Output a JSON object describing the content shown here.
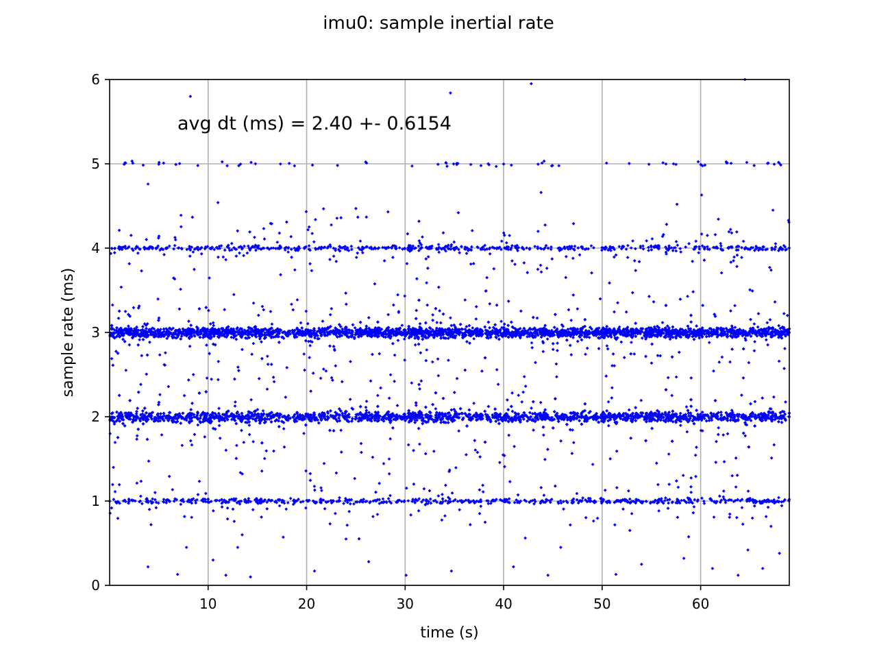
{
  "chart_data": {
    "type": "scatter",
    "title": "imu0: sample inertial rate",
    "xlabel": "time (s)",
    "ylabel": "sample rate (ms)",
    "xlim": [
      0,
      69
    ],
    "ylim": [
      0,
      6
    ],
    "xticks": [
      10,
      20,
      30,
      40,
      50,
      60
    ],
    "yticks": [
      0,
      1,
      2,
      3,
      4,
      5,
      6
    ],
    "grid": true,
    "color": "#0000ff",
    "annotation": "avg dt (ms) = 2.40 +- 0.6154",
    "series": [
      {
        "bands": [
          {
            "center": 3.0,
            "spread": 0.06,
            "density": "dense"
          },
          {
            "center": 2.0,
            "spread": 0.06,
            "density": "dense"
          },
          {
            "center": 4.0,
            "spread": 0.03,
            "density": "sparse"
          },
          {
            "center": 1.0,
            "spread": 0.03,
            "density": "sparse"
          },
          {
            "center": 5.0,
            "spread": 0.03,
            "density": "very sparse"
          }
        ],
        "outliers": [
          {
            "x": 8.2,
            "y": 5.8
          },
          {
            "x": 34.6,
            "y": 5.84
          },
          {
            "x": 42.8,
            "y": 5.95
          },
          {
            "x": 64.5,
            "y": 6.0
          },
          {
            "x": 3.9,
            "y": 4.76
          },
          {
            "x": 11.0,
            "y": 4.54
          },
          {
            "x": 25.0,
            "y": 4.47
          },
          {
            "x": 43.8,
            "y": 4.66
          },
          {
            "x": 57.6,
            "y": 4.52
          },
          {
            "x": 60.1,
            "y": 4.63
          },
          {
            "x": 27.9,
            "y": 3.85
          },
          {
            "x": 38.3,
            "y": 3.65
          },
          {
            "x": 8.5,
            "y": 2.5
          },
          {
            "x": 24.6,
            "y": 2.1
          },
          {
            "x": 36.2,
            "y": 1.55
          },
          {
            "x": 3.9,
            "y": 0.22
          },
          {
            "x": 4.2,
            "y": 0.72
          },
          {
            "x": 6.9,
            "y": 0.13
          },
          {
            "x": 7.8,
            "y": 0.45
          },
          {
            "x": 10.5,
            "y": 0.3
          },
          {
            "x": 11.8,
            "y": 0.12
          },
          {
            "x": 13.0,
            "y": 0.45
          },
          {
            "x": 14.3,
            "y": 0.1
          },
          {
            "x": 20.8,
            "y": 0.17
          },
          {
            "x": 24.0,
            "y": 0.55
          },
          {
            "x": 26.3,
            "y": 0.28
          },
          {
            "x": 30.1,
            "y": 0.12
          },
          {
            "x": 34.7,
            "y": 0.17
          },
          {
            "x": 41.0,
            "y": 0.22
          },
          {
            "x": 44.5,
            "y": 0.12
          },
          {
            "x": 45.8,
            "y": 0.45
          },
          {
            "x": 51.4,
            "y": 0.13
          },
          {
            "x": 54.0,
            "y": 0.25
          },
          {
            "x": 58.3,
            "y": 0.32
          },
          {
            "x": 61.2,
            "y": 0.2
          },
          {
            "x": 63.8,
            "y": 0.12
          },
          {
            "x": 64.8,
            "y": 0.42
          },
          {
            "x": 66.3,
            "y": 0.2
          },
          {
            "x": 68.0,
            "y": 0.38
          }
        ]
      }
    ]
  }
}
